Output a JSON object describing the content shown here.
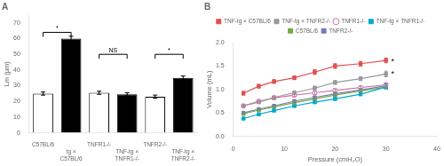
{
  "chart_data": [
    {
      "type": "bar",
      "title": "A",
      "categories": [
        "C57BL/6",
        "tg ×\nC57BL/6",
        "TNFR1-/-",
        "TNF-tg ×\nTNFR1-/-",
        "TNFR2-/-",
        "TNF-tg ×\nTNFR2-/-"
      ],
      "values": [
        25.0,
        60.0,
        25.5,
        24.5,
        23.0,
        35.0
      ],
      "errors": [
        1.0,
        1.5,
        1.0,
        1.0,
        1.0,
        1.2
      ],
      "colors": [
        "white",
        "black",
        "white",
        "black",
        "white",
        "black"
      ],
      "ylabel": "Lm (μm)",
      "ylim": [
        0,
        75
      ],
      "yticks": [
        0,
        10,
        20,
        30,
        40,
        50,
        60,
        70
      ],
      "grid": false,
      "legend": false,
      "annotations": [
        {
          "x1": 0,
          "x2": 1,
          "y": 64,
          "text": "*"
        },
        {
          "x1": 2,
          "x2": 3,
          "y": 50,
          "text": "NS"
        },
        {
          "x1": 4,
          "x2": 5,
          "y": 50,
          "text": "*"
        }
      ]
    },
    {
      "type": "line",
      "title": "B",
      "x": [
        2,
        5,
        8,
        12,
        16,
        20,
        25,
        30
      ],
      "series": [
        {
          "name": "TNF-tg × C57BL/6",
          "color": "#e05050",
          "marker": "square",
          "values": [
            0.92,
            1.07,
            1.17,
            1.25,
            1.37,
            1.5,
            1.55,
            1.62
          ],
          "errors": [
            0.04,
            0.04,
            0.04,
            0.04,
            0.05,
            0.05,
            0.05,
            0.05
          ]
        },
        {
          "name": "TNF-tg × TNFR2-/-",
          "color": "#999999",
          "marker": "square",
          "values": [
            0.65,
            0.73,
            0.83,
            0.93,
            1.03,
            1.15,
            1.23,
            1.33
          ],
          "errors": [
            0.03,
            0.03,
            0.03,
            0.04,
            0.04,
            0.04,
            0.04,
            0.06
          ]
        },
        {
          "name": "TNFR1-/-",
          "color": "#cc77aa",
          "marker": "open_circle",
          "values": [
            0.65,
            0.75,
            0.82,
            0.88,
            0.93,
            0.98,
            1.04,
            1.1
          ],
          "errors": [
            0.02,
            0.02,
            0.03,
            0.03,
            0.03,
            0.03,
            0.03,
            0.04
          ]
        },
        {
          "name": "TNF-tg × TNFR1-/-",
          "color": "#00aacc",
          "marker": "square",
          "values": [
            0.38,
            0.47,
            0.55,
            0.65,
            0.73,
            0.8,
            0.9,
            1.05
          ],
          "errors": [
            0.02,
            0.02,
            0.02,
            0.03,
            0.03,
            0.03,
            0.03,
            0.04
          ]
        },
        {
          "name": "C57BL/6",
          "color": "#77aa44",
          "marker": "square",
          "values": [
            0.48,
            0.56,
            0.63,
            0.72,
            0.8,
            0.88,
            0.97,
            1.05
          ],
          "errors": [
            0.02,
            0.02,
            0.02,
            0.03,
            0.03,
            0.03,
            0.03,
            0.03
          ]
        },
        {
          "name": "TNFR2-/-",
          "color": "#7777bb",
          "marker": "square",
          "values": [
            0.5,
            0.58,
            0.65,
            0.75,
            0.83,
            0.91,
            0.99,
            1.08
          ],
          "errors": [
            0.02,
            0.02,
            0.02,
            0.03,
            0.03,
            0.03,
            0.03,
            0.04
          ]
        }
      ],
      "xlabel": "Pressure (cmH₂O)",
      "ylabel": "Volume (mL)",
      "xlim": [
        0,
        40
      ],
      "ylim": [
        0.0,
        2.0
      ],
      "xticks": [
        0,
        10,
        20,
        30,
        40
      ],
      "yticks": [
        {
          "value": 0,
          "label": "0.0"
        },
        0.5,
        {
          "value": 1,
          "label": "1.0"
        },
        1.5,
        {
          "value": 2,
          "label": "2.0"
        }
      ],
      "grid": false,
      "legend": "top",
      "annotations": [
        {
          "x": 31,
          "y": 1.63,
          "text": "*"
        },
        {
          "x": 31,
          "y": 1.36,
          "text": "*"
        }
      ]
    }
  ]
}
